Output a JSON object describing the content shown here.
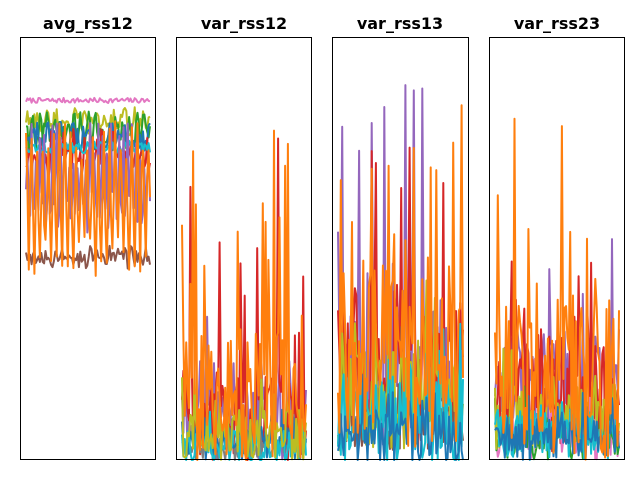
{
  "chart_data": [
    {
      "type": "line",
      "title": "avg_rss12",
      "xlabel": "",
      "ylabel": "",
      "grid": false,
      "legend": "none",
      "x_range": [
        0,
        480
      ],
      "ylim": [
        0,
        100
      ],
      "series": [
        {
          "color": "#e377c2",
          "level": 85,
          "spread": 0.6,
          "amp": 0,
          "period": 6
        },
        {
          "color": "#bcbd22",
          "level": 80,
          "spread": 2.5,
          "amp": 1,
          "period": 7
        },
        {
          "color": "#2ca02c",
          "level": 78,
          "spread": 3,
          "amp": 2,
          "period": 5
        },
        {
          "color": "#1f77b4",
          "level": 76,
          "spread": 3,
          "amp": 1,
          "period": 9
        },
        {
          "color": "#d62728",
          "level": 72,
          "spread": 4,
          "amp": 3,
          "period": 4
        },
        {
          "color": "#17becf",
          "level": 74,
          "spread": 1.5,
          "amp": 0,
          "period": 8
        },
        {
          "color": "#9467bd",
          "level": 66,
          "spread": 6,
          "amp": 9,
          "period": 3
        },
        {
          "color": "#8c564b",
          "level": 48,
          "spread": 2,
          "amp": 1,
          "period": 5
        },
        {
          "color": "#ff7f0e",
          "level": 62,
          "spread": 5,
          "amp": 14,
          "period": 4
        }
      ]
    },
    {
      "type": "line",
      "title": "var_rss12",
      "xlabel": "",
      "ylabel": "",
      "grid": false,
      "legend": "none",
      "x_range": [
        0,
        480
      ],
      "ylim": [
        0,
        100
      ],
      "series": [
        {
          "color": "#9467bd",
          "level": 12,
          "spread": 12,
          "peak": 30,
          "period": 3
        },
        {
          "color": "#d62728",
          "level": 10,
          "spread": 12,
          "peak": 68,
          "period": 3
        },
        {
          "color": "#7f7f7f",
          "level": 3,
          "spread": 3,
          "peak": 10,
          "period": 4
        },
        {
          "color": "#1f77b4",
          "level": 4,
          "spread": 4,
          "peak": 12,
          "period": 4
        },
        {
          "color": "#17becf",
          "level": 3,
          "spread": 4,
          "peak": 10,
          "period": 4
        },
        {
          "color": "#bcbd22",
          "level": 6,
          "spread": 6,
          "peak": 18,
          "period": 3
        },
        {
          "color": "#ff7f0e",
          "level": 15,
          "spread": 16,
          "peak": 75,
          "period": 2
        }
      ]
    },
    {
      "type": "line",
      "title": "var_rss13",
      "xlabel": "",
      "ylabel": "",
      "grid": false,
      "legend": "none",
      "x_range": [
        0,
        480
      ],
      "ylim": [
        0,
        100
      ],
      "series": [
        {
          "color": "#9467bd",
          "level": 20,
          "spread": 18,
          "peak": 76,
          "period": 3
        },
        {
          "color": "#d62728",
          "level": 22,
          "spread": 20,
          "peak": 72,
          "period": 3
        },
        {
          "color": "#8c564b",
          "level": 10,
          "spread": 8,
          "peak": 30,
          "period": 3
        },
        {
          "color": "#bcbd22",
          "level": 14,
          "spread": 12,
          "peak": 40,
          "period": 3
        },
        {
          "color": "#17becf",
          "level": 10,
          "spread": 12,
          "peak": 28,
          "period": 3
        },
        {
          "color": "#1f77b4",
          "level": 5,
          "spread": 6,
          "peak": 18,
          "period": 3
        },
        {
          "color": "#ff7f0e",
          "level": 24,
          "spread": 22,
          "peak": 80,
          "period": 2
        }
      ]
    },
    {
      "type": "line",
      "title": "var_rss23",
      "xlabel": "",
      "ylabel": "",
      "grid": false,
      "legend": "none",
      "x_range": [
        0,
        480
      ],
      "ylim": [
        0,
        100
      ],
      "series": [
        {
          "color": "#9467bd",
          "level": 18,
          "spread": 14,
          "peak": 40,
          "period": 3
        },
        {
          "color": "#d62728",
          "level": 16,
          "spread": 14,
          "peak": 45,
          "period": 3
        },
        {
          "color": "#e377c2",
          "level": 6,
          "spread": 6,
          "peak": 15,
          "period": 4
        },
        {
          "color": "#2ca02c",
          "level": 6,
          "spread": 6,
          "peak": 18,
          "period": 3
        },
        {
          "color": "#bcbd22",
          "level": 10,
          "spread": 8,
          "peak": 25,
          "period": 3
        },
        {
          "color": "#17becf",
          "level": 6,
          "spread": 6,
          "peak": 15,
          "period": 3
        },
        {
          "color": "#1f77b4",
          "level": 5,
          "spread": 5,
          "peak": 14,
          "period": 3
        },
        {
          "color": "#ff7f0e",
          "level": 20,
          "spread": 20,
          "peak": 63,
          "period": 2
        }
      ]
    }
  ]
}
